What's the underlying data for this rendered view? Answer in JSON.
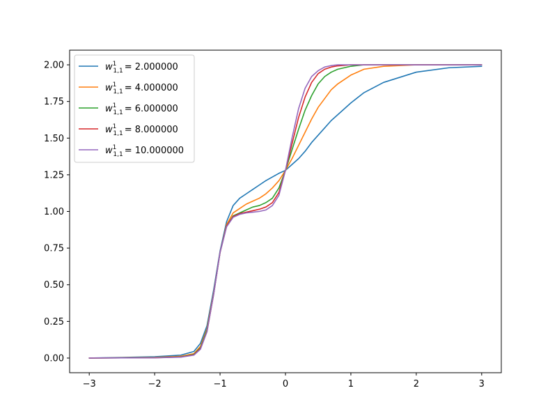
{
  "chart_data": {
    "type": "line",
    "title": "",
    "xlabel": "",
    "ylabel": "",
    "xlim": [
      -3.3,
      3.3
    ],
    "ylim": [
      -0.1,
      2.1
    ],
    "x_ticks": [
      -3,
      -2,
      -1,
      0,
      1,
      2,
      3
    ],
    "x_tick_labels": [
      "−3",
      "−2",
      "−1",
      "0",
      "1",
      "2",
      "3"
    ],
    "y_ticks": [
      0.0,
      0.25,
      0.5,
      0.75,
      1.0,
      1.25,
      1.5,
      1.75,
      2.0
    ],
    "y_tick_labels": [
      "0.00",
      "0.25",
      "0.50",
      "0.75",
      "1.00",
      "1.25",
      "1.50",
      "1.75",
      "2.00"
    ],
    "grid": false,
    "legend_position": "top-left",
    "x": [
      -3.0,
      -2.5,
      -2.0,
      -1.6,
      -1.4,
      -1.3,
      -1.2,
      -1.1,
      -1.0,
      -0.9,
      -0.8,
      -0.7,
      -0.6,
      -0.5,
      -0.4,
      -0.3,
      -0.2,
      -0.1,
      0.0,
      0.1,
      0.2,
      0.3,
      0.4,
      0.5,
      0.6,
      0.7,
      0.8,
      1.0,
      1.2,
      1.5,
      2.0,
      2.5,
      3.0
    ],
    "series": [
      {
        "name": "w¹₁,₁ = 2.000000",
        "label_main": "= 2.000000",
        "color": "#1f77b4",
        "values": [
          0.0,
          0.004,
          0.009,
          0.02,
          0.045,
          0.1,
          0.22,
          0.46,
          0.73,
          0.93,
          1.04,
          1.09,
          1.12,
          1.15,
          1.18,
          1.21,
          1.235,
          1.26,
          1.28,
          1.32,
          1.36,
          1.41,
          1.47,
          1.52,
          1.57,
          1.62,
          1.66,
          1.74,
          1.81,
          1.88,
          1.95,
          1.98,
          1.99
        ]
      },
      {
        "name": "w¹₁,₁ = 4.000000",
        "label_main": "= 4.000000",
        "color": "#ff7f0e",
        "values": [
          0.0,
          0.002,
          0.005,
          0.012,
          0.03,
          0.08,
          0.2,
          0.44,
          0.72,
          0.91,
          0.99,
          1.02,
          1.05,
          1.07,
          1.09,
          1.12,
          1.16,
          1.21,
          1.28,
          1.36,
          1.45,
          1.54,
          1.63,
          1.71,
          1.77,
          1.83,
          1.87,
          1.93,
          1.97,
          1.99,
          2.0,
          2.0,
          2.0
        ]
      },
      {
        "name": "w¹₁,₁ = 6.000000",
        "label_main": "= 6.000000",
        "color": "#2ca02c",
        "values": [
          0.0,
          0.001,
          0.003,
          0.008,
          0.025,
          0.07,
          0.19,
          0.43,
          0.72,
          0.9,
          0.97,
          0.99,
          1.01,
          1.03,
          1.04,
          1.06,
          1.09,
          1.16,
          1.28,
          1.42,
          1.56,
          1.69,
          1.79,
          1.87,
          1.92,
          1.95,
          1.97,
          1.99,
          2.0,
          2.0,
          2.0,
          2.0,
          2.0
        ]
      },
      {
        "name": "w¹₁,₁ = 8.000000",
        "label_main": "= 8.000000",
        "color": "#d62728",
        "values": [
          0.0,
          0.001,
          0.002,
          0.007,
          0.022,
          0.065,
          0.18,
          0.43,
          0.72,
          0.9,
          0.965,
          0.985,
          0.995,
          1.005,
          1.015,
          1.03,
          1.06,
          1.13,
          1.28,
          1.46,
          1.64,
          1.78,
          1.88,
          1.94,
          1.97,
          1.985,
          1.993,
          2.0,
          2.0,
          2.0,
          2.0,
          2.0,
          2.0
        ]
      },
      {
        "name": "w¹₁,₁ = 10.000000",
        "label_main": "= 10.000000",
        "color": "#9467bd",
        "values": [
          0.0,
          0.001,
          0.002,
          0.006,
          0.02,
          0.06,
          0.18,
          0.43,
          0.72,
          0.895,
          0.96,
          0.98,
          0.99,
          0.995,
          1.0,
          1.01,
          1.04,
          1.11,
          1.28,
          1.5,
          1.7,
          1.84,
          1.92,
          1.96,
          1.985,
          1.995,
          2.0,
          2.0,
          2.0,
          2.0,
          2.0,
          2.0,
          2.0
        ]
      }
    ]
  }
}
